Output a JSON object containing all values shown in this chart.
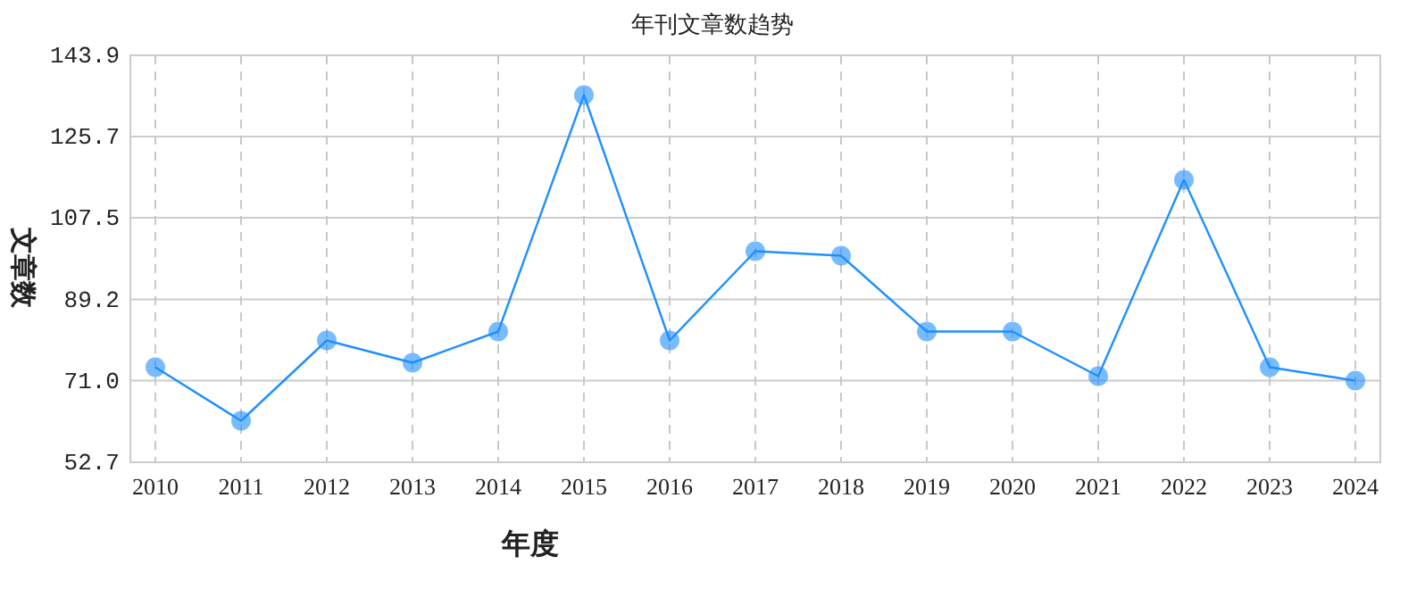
{
  "chart_data": {
    "type": "line",
    "title": "年刊文章数趋势",
    "xlabel": "年度",
    "ylabel": "文章数",
    "categories": [
      "2010",
      "2011",
      "2012",
      "2013",
      "2014",
      "2015",
      "2016",
      "2017",
      "2018",
      "2019",
      "2020",
      "2021",
      "2022",
      "2023",
      "2024"
    ],
    "series": [
      {
        "color": "#1e90ff",
        "values": [
          74,
          62,
          80,
          75,
          82,
          135,
          80,
          100,
          99,
          82,
          82,
          72,
          116,
          74,
          71
        ]
      }
    ],
    "ylim": [
      52.7,
      143.9
    ],
    "yticks": [
      52.7,
      {
        "value": 71.0,
        "label": "71.0"
      },
      89.2,
      107.5,
      125.7,
      143.9
    ],
    "grid": true,
    "marker": "circle",
    "line_style": "solid"
  }
}
